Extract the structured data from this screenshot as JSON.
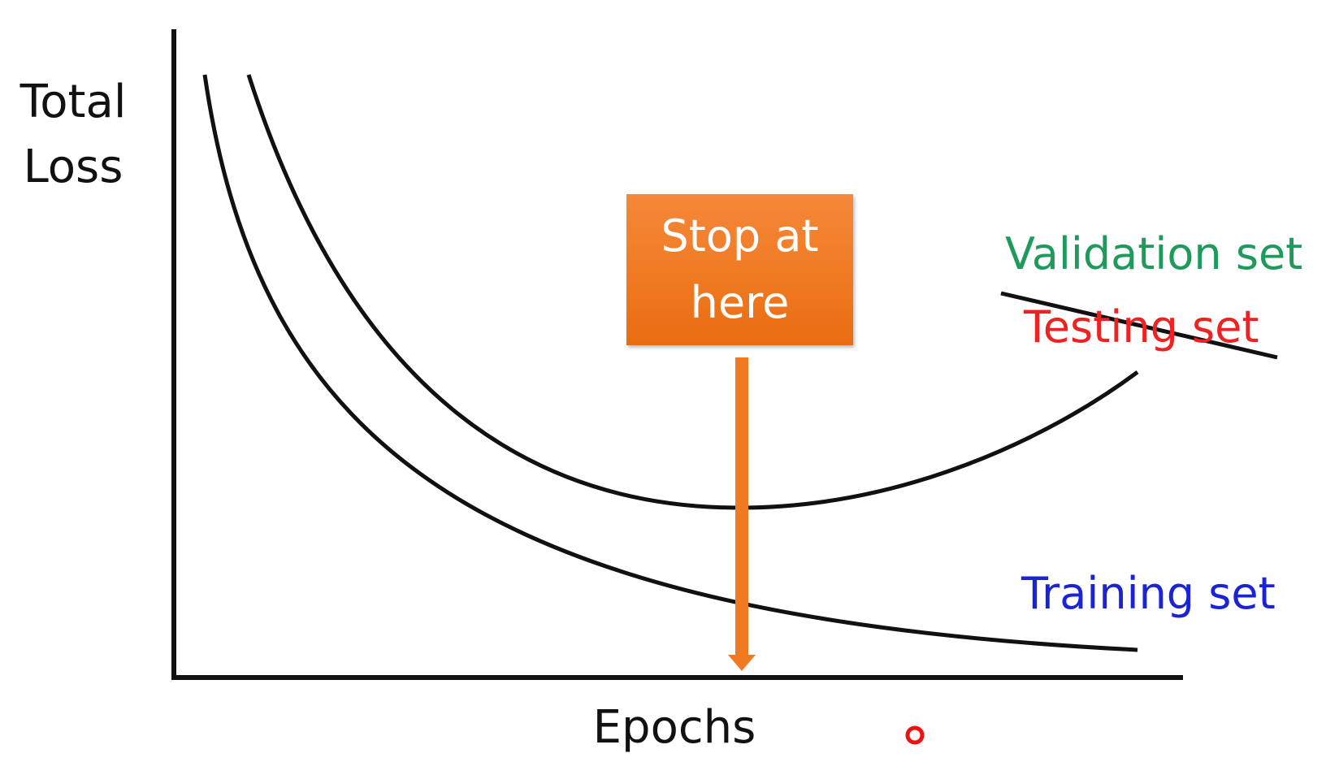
{
  "axes": {
    "y_label_lines": [
      "Total",
      "Loss"
    ],
    "x_label": "Epochs"
  },
  "callout": {
    "lines": [
      "Stop at",
      "here"
    ],
    "color": "#ef7a22"
  },
  "series_labels": {
    "validation": "Validation set",
    "testing": "Testing set",
    "training": "Training set"
  },
  "colors": {
    "validation": "#1e9a5a",
    "testing": "#ee2222",
    "training": "#1a23d6",
    "curve": "#111111",
    "pointer": "#ee1111"
  }
}
